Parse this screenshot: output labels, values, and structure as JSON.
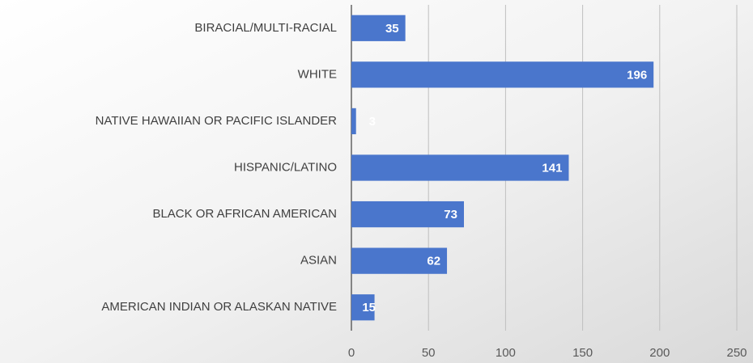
{
  "chart_data": {
    "type": "bar",
    "orientation": "horizontal",
    "categories": [
      "BIRACIAL/MULTI-RACIAL",
      "WHITE",
      "NATIVE HAWAIIAN OR PACIFIC ISLANDER",
      "HISPANIC/LATINO",
      "BLACK OR AFRICAN AMERICAN",
      "ASIAN",
      "AMERICAN INDIAN OR ALASKAN NATIVE"
    ],
    "values": [
      35,
      196,
      3,
      141,
      73,
      62,
      15
    ],
    "color": "#4a76cc",
    "xlim": [
      0,
      250
    ],
    "xticks": [
      0,
      50,
      100,
      150,
      200,
      250
    ],
    "grid": true
  }
}
